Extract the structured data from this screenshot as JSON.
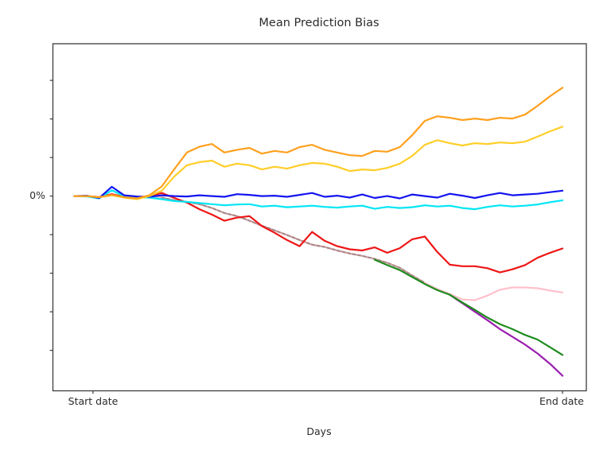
{
  "labels": {
    "title": "Mean Prediction Bias",
    "x_axis": "Days",
    "y_zero": "0%",
    "x_start": "Start date",
    "x_end": "End date"
  },
  "colors": {
    "spine": "#3c3c3c",
    "tick": "#3c3c3c",
    "text": "#2b2b2b",
    "background": "#ffffff"
  },
  "chart_data": {
    "type": "line",
    "title": "Mean Prediction Bias",
    "xlabel": "Days",
    "ylabel": "",
    "grid": false,
    "legend_position": "none",
    "x": [
      0,
      1,
      2,
      3,
      4,
      5,
      6,
      7,
      8,
      9,
      10,
      11,
      12,
      13,
      14,
      15,
      16,
      17,
      18,
      19,
      20,
      21,
      22,
      23,
      24,
      25,
      26,
      27,
      28,
      29,
      30,
      31,
      32,
      33,
      34,
      35,
      36,
      37,
      38,
      39
    ],
    "xlim": [
      -1.7,
      40.9
    ],
    "ylim": [
      -5.05,
      3.95
    ],
    "y_unit": "percent",
    "ytick_values": [
      -4,
      -3,
      -2,
      -1,
      0,
      1,
      2,
      3
    ],
    "ytick_labels": [
      "",
      "",
      "",
      "",
      "0%",
      "",
      "",
      ""
    ],
    "xticks": [
      {
        "value": 1.5,
        "label": "Start date"
      },
      {
        "value": 39,
        "label": "End date"
      }
    ],
    "series": [
      {
        "name": "pink",
        "color": "#ffc0cb",
        "dash": "solid",
        "values": [
          0.0,
          0.0,
          -0.02,
          0.04,
          -0.01,
          -0.03,
          0.0,
          -0.04,
          -0.11,
          -0.15,
          -0.21,
          -0.31,
          -0.44,
          -0.52,
          -0.64,
          -0.77,
          -0.89,
          -1.01,
          -1.14,
          -1.26,
          -1.32,
          -1.41,
          -1.49,
          -1.55,
          -1.63,
          -1.73,
          -1.86,
          -2.06,
          -2.25,
          -2.41,
          -2.54,
          -2.68,
          -2.7,
          -2.58,
          -2.43,
          -2.37,
          -2.37,
          -2.39,
          -2.45,
          -2.5
        ]
      },
      {
        "name": "rosybrown-dashed",
        "color": "#ab8a8a",
        "dash": "dashed",
        "values": [
          null,
          null,
          null,
          null,
          null,
          null,
          null,
          -0.04,
          -0.11,
          -0.15,
          -0.21,
          -0.31,
          -0.44,
          -0.52,
          -0.64,
          -0.77,
          -0.89,
          -1.01,
          -1.14,
          -1.26,
          -1.32,
          -1.41,
          -1.49,
          -1.55,
          -1.63,
          -1.73,
          -1.86,
          -2.06,
          -2.25,
          null,
          null,
          null,
          null,
          null,
          null,
          null,
          null,
          null,
          null,
          null
        ]
      },
      {
        "name": "purple",
        "color": "#9a1fae",
        "dash": "solid",
        "values": [
          null,
          null,
          null,
          null,
          null,
          null,
          null,
          null,
          null,
          null,
          null,
          null,
          null,
          null,
          null,
          null,
          null,
          null,
          null,
          null,
          null,
          null,
          null,
          null,
          null,
          null,
          null,
          null,
          null,
          null,
          -2.56,
          -2.78,
          -3.0,
          -3.22,
          -3.45,
          -3.65,
          -3.85,
          -4.08,
          -4.35,
          -4.66
        ]
      },
      {
        "name": "green",
        "color": "#1e8c1e",
        "dash": "solid",
        "values": [
          null,
          null,
          null,
          null,
          null,
          null,
          null,
          null,
          null,
          null,
          null,
          null,
          null,
          null,
          null,
          null,
          null,
          null,
          null,
          null,
          null,
          null,
          null,
          null,
          -1.65,
          -1.79,
          -1.92,
          -2.1,
          -2.28,
          -2.44,
          -2.56,
          -2.76,
          -2.95,
          -3.15,
          -3.32,
          -3.45,
          -3.6,
          -3.72,
          -3.92,
          -4.12
        ]
      },
      {
        "name": "red",
        "color": "#ee1616",
        "dash": "solid",
        "values": [
          0.0,
          0.0,
          -0.03,
          0.05,
          -0.02,
          -0.04,
          0.0,
          0.08,
          -0.05,
          -0.17,
          -0.34,
          -0.48,
          -0.64,
          -0.56,
          -0.52,
          -0.78,
          -0.95,
          -1.14,
          -1.3,
          -0.93,
          -1.16,
          -1.3,
          -1.38,
          -1.41,
          -1.33,
          -1.47,
          -1.35,
          -1.12,
          -1.05,
          -1.45,
          -1.78,
          -1.82,
          -1.82,
          -1.87,
          -1.98,
          -1.9,
          -1.79,
          -1.6,
          -1.47,
          -1.36
        ]
      },
      {
        "name": "cyan",
        "color": "#00e6f5",
        "dash": "solid",
        "values": [
          0.0,
          -0.01,
          -0.06,
          0.15,
          0.0,
          -0.03,
          -0.04,
          -0.08,
          -0.13,
          -0.15,
          -0.18,
          -0.21,
          -0.24,
          -0.22,
          -0.21,
          -0.27,
          -0.25,
          -0.29,
          -0.27,
          -0.25,
          -0.28,
          -0.3,
          -0.27,
          -0.25,
          -0.33,
          -0.28,
          -0.31,
          -0.29,
          -0.24,
          -0.27,
          -0.25,
          -0.31,
          -0.34,
          -0.28,
          -0.24,
          -0.27,
          -0.25,
          -0.22,
          -0.16,
          -0.11
        ]
      },
      {
        "name": "blue",
        "color": "#1414f0",
        "dash": "solid",
        "values": [
          0.0,
          0.01,
          -0.05,
          0.24,
          0.02,
          -0.01,
          -0.02,
          0.02,
          0.0,
          -0.01,
          0.02,
          0.0,
          -0.02,
          0.05,
          0.03,
          0.0,
          0.01,
          -0.02,
          0.03,
          0.08,
          -0.02,
          0.01,
          -0.04,
          0.04,
          -0.05,
          0.0,
          -0.06,
          0.04,
          0.0,
          -0.04,
          0.06,
          0.01,
          -0.05,
          0.02,
          0.08,
          0.02,
          0.04,
          0.06,
          0.1,
          0.14
        ]
      },
      {
        "name": "gold",
        "color": "#ffce29",
        "dash": "solid",
        "values": [
          0.0,
          0.0,
          -0.03,
          0.02,
          -0.04,
          -0.08,
          0.0,
          0.14,
          0.51,
          0.8,
          0.88,
          0.92,
          0.76,
          0.84,
          0.8,
          0.69,
          0.76,
          0.71,
          0.8,
          0.86,
          0.84,
          0.76,
          0.65,
          0.69,
          0.67,
          0.73,
          0.84,
          1.04,
          1.33,
          1.45,
          1.37,
          1.31,
          1.37,
          1.35,
          1.39,
          1.37,
          1.41,
          1.54,
          1.68,
          1.8
        ]
      },
      {
        "name": "orange",
        "color": "#ffa01e",
        "dash": "solid",
        "values": [
          0.0,
          0.0,
          -0.03,
          0.03,
          -0.03,
          -0.06,
          0.02,
          0.25,
          0.7,
          1.13,
          1.28,
          1.35,
          1.13,
          1.2,
          1.25,
          1.1,
          1.17,
          1.13,
          1.27,
          1.33,
          1.2,
          1.13,
          1.06,
          1.04,
          1.17,
          1.15,
          1.27,
          1.58,
          1.95,
          2.07,
          2.03,
          1.97,
          2.01,
          1.97,
          2.03,
          2.01,
          2.11,
          2.34,
          2.59,
          2.81
        ]
      }
    ]
  }
}
